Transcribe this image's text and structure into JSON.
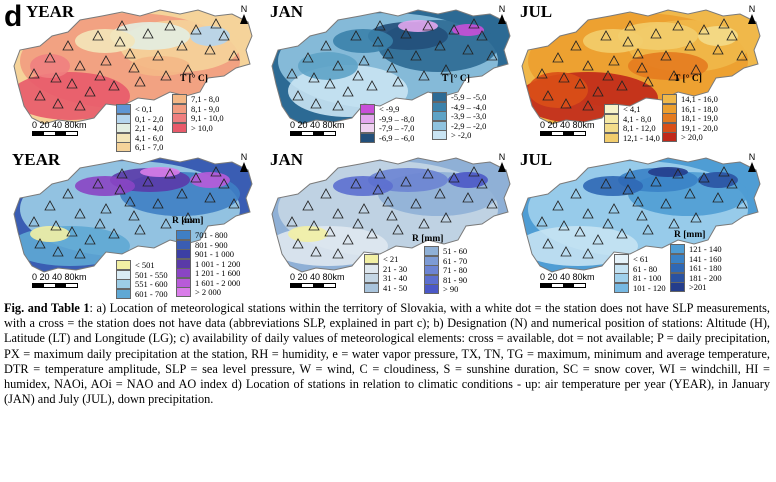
{
  "panel_letter": "d",
  "north_label": "N",
  "scale": {
    "ticks": "0 20 40",
    "unit": "80km"
  },
  "panels": [
    {
      "title": "YEAR",
      "legend_title": "T [° C]",
      "legend": [
        {
          "label": "< 0,1",
          "color": "#5f96d4"
        },
        {
          "label": "0,1 - 2,0",
          "color": "#b5d5ee"
        },
        {
          "label": "2,1 - 4,0",
          "color": "#e3eee2"
        },
        {
          "label": "4,1 - 6,0",
          "color": "#f3e5b9"
        },
        {
          "label": "6,1 - 7,0",
          "color": "#f5d39a"
        },
        {
          "label": "7,1 - 8,0",
          "color": "#f4b886"
        },
        {
          "label": "8,1 - 9,0",
          "color": "#f29c80"
        },
        {
          "label": "9,1 - 10,0",
          "color": "#ef7f7f"
        },
        {
          "label": "> 10,0",
          "color": "#e85a6a"
        }
      ]
    },
    {
      "title": "JAN",
      "legend_title": "T [° C]",
      "legend": [
        {
          "label": "< -9,9",
          "color": "#c84fd8"
        },
        {
          "label": "-9,9 – -8,0",
          "color": "#e3a7ee"
        },
        {
          "label": "-7,9 – -7,0",
          "color": "#efd2f1"
        },
        {
          "label": "-6,9 – -6,0",
          "color": "#224f7a"
        },
        {
          "label": "-5,9 – -5,0",
          "color": "#2c6a94"
        },
        {
          "label": "-4,9 – -4,0",
          "color": "#3b82ab"
        },
        {
          "label": "-3,9 – -3,0",
          "color": "#5ea3c6"
        },
        {
          "label": "-2,9 – -2,0",
          "color": "#8fc3df"
        },
        {
          "label": "> -2,0",
          "color": "#c9e4f3"
        }
      ]
    },
    {
      "title": "JUL",
      "legend_title": "T [° C]",
      "legend": [
        {
          "label": "< 4,1",
          "color": "#f7f3c9"
        },
        {
          "label": "4,1 - 8,0",
          "color": "#f5e9a6"
        },
        {
          "label": "8,1 - 12,0",
          "color": "#f3dc8a"
        },
        {
          "label": "12,1 - 14,0",
          "color": "#f2cd6d"
        },
        {
          "label": "14,1 - 16,0",
          "color": "#f0b84a"
        },
        {
          "label": "16,1 - 18,0",
          "color": "#ec9f2f"
        },
        {
          "label": "18,1 - 19,0",
          "color": "#e47b1f"
        },
        {
          "label": "19,1 - 20,0",
          "color": "#d94f17"
        },
        {
          "label": "> 20,0",
          "color": "#c0281a"
        }
      ]
    },
    {
      "title": "YEAR",
      "legend_title": "R [mm]",
      "legend": [
        {
          "label": "< 501",
          "color": "#f2f0a4"
        },
        {
          "label": "501 - 550",
          "color": "#d9ecf5"
        },
        {
          "label": "551 - 600",
          "color": "#9ccde6"
        },
        {
          "label": "601 - 700",
          "color": "#5fa8d4"
        },
        {
          "label": "701 - 800",
          "color": "#3f7fc4"
        },
        {
          "label": "801 - 900",
          "color": "#3a5db3"
        },
        {
          "label": "901 - 1 000",
          "color": "#3c3fa4"
        },
        {
          "label": "1 001 - 1 200",
          "color": "#5a3aa8"
        },
        {
          "label": "1 201 - 1 600",
          "color": "#8a45c4"
        },
        {
          "label": "1 601 - 2 000",
          "color": "#b85bd9"
        },
        {
          "label": "> 2 000",
          "color": "#d97de9"
        }
      ]
    },
    {
      "title": "JAN",
      "legend_title": "R [mm]",
      "legend": [
        {
          "label": "< 21",
          "color": "#f2f0a4"
        },
        {
          "label": "21 - 30",
          "color": "#dfe8ef"
        },
        {
          "label": "31 - 40",
          "color": "#c4d6e4"
        },
        {
          "label": "41 - 50",
          "color": "#a9c4dc"
        },
        {
          "label": "51 - 60",
          "color": "#8fb0d6"
        },
        {
          "label": "61 - 70",
          "color": "#7d9bd5"
        },
        {
          "label": "71 - 80",
          "color": "#6c84d3"
        },
        {
          "label": "81 - 90",
          "color": "#5c6fcf"
        },
        {
          "label": "> 90",
          "color": "#4b58c7"
        }
      ]
    },
    {
      "title": "JUL",
      "legend_title": "R [mm]",
      "legend": [
        {
          "label": "< 61",
          "color": "#e6f3fa"
        },
        {
          "label": "61 - 80",
          "color": "#c5e3f3"
        },
        {
          "label": "81 - 100",
          "color": "#9fd0ec"
        },
        {
          "label": "101 - 120",
          "color": "#76b8e2"
        },
        {
          "label": "121 - 140",
          "color": "#4f9dd4"
        },
        {
          "label": "141 - 160",
          "color": "#3a82c6"
        },
        {
          "label": "161 - 180",
          "color": "#2f68b5"
        },
        {
          "label": "181 - 200",
          "color": "#2a52a2"
        },
        {
          "label": ">201",
          "color": "#243d8c"
        }
      ]
    }
  ],
  "caption": {
    "bold": "Fig. and Table 1",
    "text": ": a) Location of meteorological stations within the territory of Slovakia, with a white dot = the station does not have SLP measurements, with a cross = the station does not have data  (abbreviations SLP, explained in part c); b) Designation (N) and numerical position of stations: Altitude (H), Latitude (LT) and Longitude (LG); c) availability of daily values of meteorological elements: cross = available, dot = not available; P = daily precipitation, PX = maximum daily precipitation at the station, RH = humidity, e = water vapor pressure, TX, TN, TG = maximum, minimum and average temperature, DTR = temperature amplitude, SLP = sea level pressure, W = wind, C = cloudiness, S = sunshine duration, SC = snow cover, WI = windchill, HI = humidex, NAOi, AOi = NAO and AO index d) Location of stations in relation to climatic conditions - up: air temperature per year (YEAR), in January (JAN) and July (JUL), down precipitation."
  }
}
